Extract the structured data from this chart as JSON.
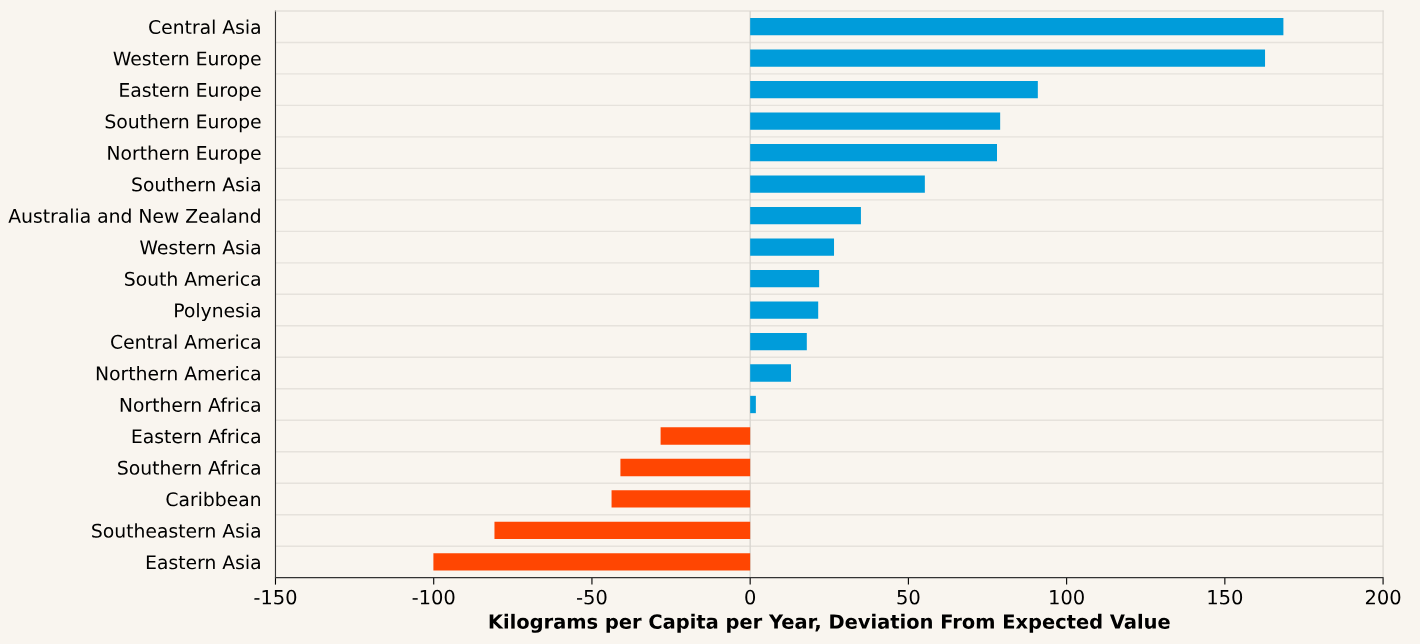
{
  "chart_data": {
    "type": "bar",
    "orientation": "horizontal",
    "xlabel": "Kilograms per Capita per Year, Deviation From Expected Value",
    "categories": [
      "Central Asia",
      "Western Europe",
      "Eastern Europe",
      "Southern Europe",
      "Northern Europe",
      "Southern Asia",
      "Australia and New Zealand",
      "Western Asia",
      "South America",
      "Polynesia",
      "Central America",
      "Northern America",
      "Northern Africa",
      "Eastern Africa",
      "Southern Africa",
      "Caribbean",
      "Southeastern Asia",
      "Eastern Asia"
    ],
    "values": [
      168.5,
      162.7,
      90.9,
      79,
      78,
      55.2,
      35,
      26.5,
      21.8,
      21.5,
      17.9,
      12.9,
      1.8,
      -28.3,
      -41,
      -43.8,
      -80.8,
      -100.1
    ],
    "colors": [
      "#009cda",
      "#009cda",
      "#009cda",
      "#009cda",
      "#009cda",
      "#009cda",
      "#009cda",
      "#009cda",
      "#009cda",
      "#009cda",
      "#009cda",
      "#009cda",
      "#009cda",
      "#ff4602",
      "#ff4602",
      "#ff4602",
      "#ff4602",
      "#ff4602"
    ],
    "xlim": [
      -150,
      200
    ],
    "xticks": [
      -150,
      -100,
      -50,
      0,
      50,
      100,
      150,
      200
    ],
    "ref_lines": [
      {
        "axis": "x",
        "value": 0,
        "color": "#d9d6d0"
      }
    ],
    "grid": "y"
  }
}
